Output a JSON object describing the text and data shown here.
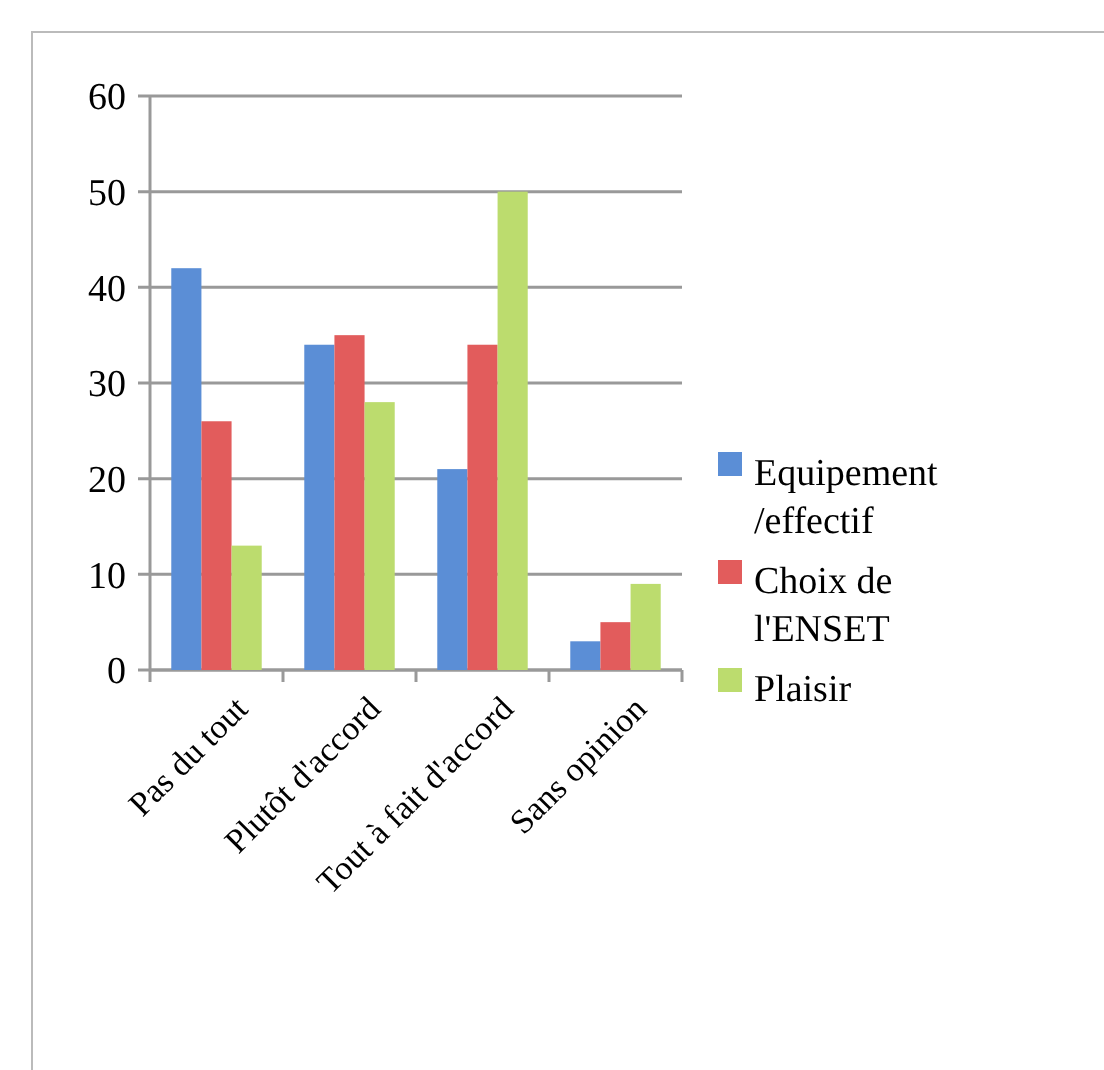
{
  "chart_data": {
    "type": "bar",
    "categories": [
      "Pas du tout",
      "Plutôt d'accord",
      "Tout à fait d'accord",
      "Sans opinion"
    ],
    "series": [
      {
        "name": "Equipement /effectif",
        "color": "#5b8ed6",
        "values": [
          42,
          34,
          21,
          3
        ]
      },
      {
        "name": "Choix de l'ENSET",
        "color": "#e25c5c",
        "values": [
          26,
          35,
          34,
          5
        ]
      },
      {
        "name": "Plaisir",
        "color": "#bcdc6e",
        "values": [
          13,
          28,
          50,
          9
        ]
      }
    ],
    "ylim": [
      0,
      60
    ],
    "yticks": [
      0,
      10,
      20,
      30,
      40,
      50,
      60
    ],
    "grid": "y",
    "legend": "right"
  }
}
